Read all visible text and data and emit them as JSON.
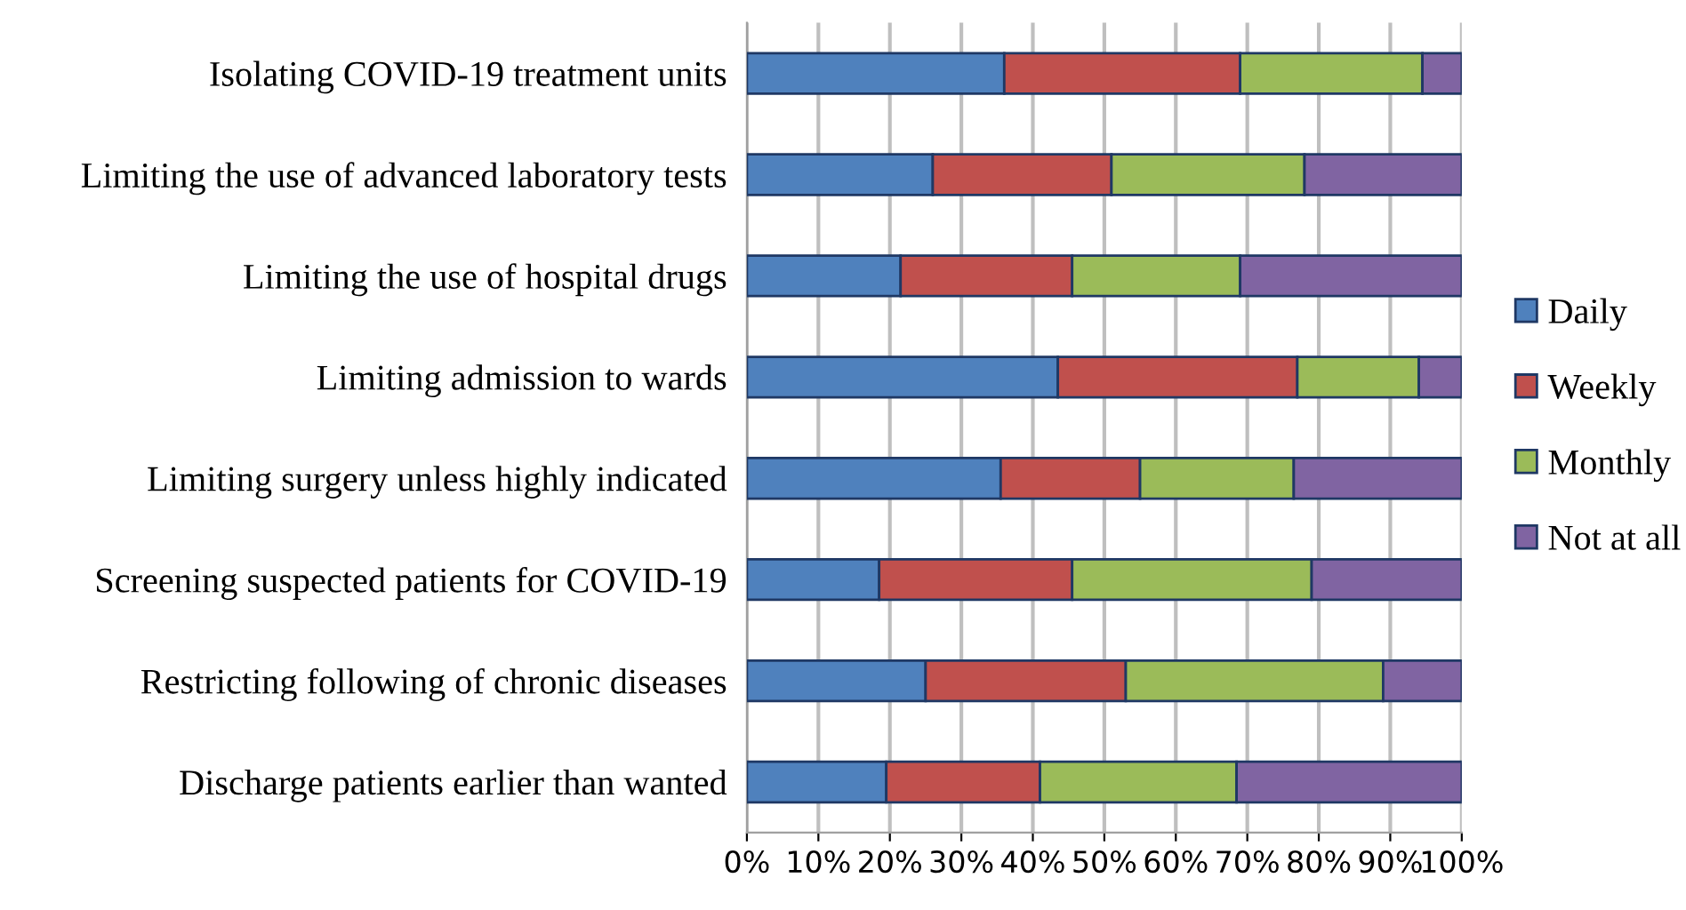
{
  "chart_data": {
    "type": "bar",
    "orientation": "horizontal",
    "stacked": true,
    "categories": [
      "Isolating COVID-19 treatment units",
      "Limiting the use of advanced laboratory tests",
      "Limiting the use of hospital drugs",
      "Limiting admission to wards",
      "Limiting surgery unless highly indicated",
      "Screening suspected patients for COVID-19",
      "Restricting following of chronic diseases",
      "Discharge patients earlier than wanted"
    ],
    "series": [
      {
        "name": "Daily",
        "color": "#4f81bd",
        "values": [
          36,
          26,
          21.5,
          43.5,
          35.5,
          18.5,
          25,
          19.5
        ]
      },
      {
        "name": "Weekly",
        "color": "#c0504d",
        "values": [
          33,
          25,
          24,
          33.5,
          19.5,
          27,
          28,
          21.5
        ]
      },
      {
        "name": "Monthly",
        "color": "#9bbb59",
        "values": [
          25.5,
          27,
          23.5,
          17,
          21.5,
          33.5,
          36,
          27.5
        ]
      },
      {
        "name": "Not at all",
        "color": "#8064a2",
        "values": [
          5.5,
          22,
          31,
          6,
          23.5,
          21,
          11,
          31.5
        ]
      }
    ],
    "xlim": [
      0,
      100
    ],
    "xticks": [
      {
        "value": 0,
        "label": "0%"
      },
      {
        "value": 10,
        "label": "10%"
      },
      {
        "value": 20,
        "label": "20%"
      },
      {
        "value": 30,
        "label": "30%"
      },
      {
        "value": 40,
        "label": "40%"
      },
      {
        "value": 50,
        "label": "50%"
      },
      {
        "value": 60,
        "label": "60%"
      },
      {
        "value": 70,
        "label": "70%"
      },
      {
        "value": 80,
        "label": "80%"
      },
      {
        "value": 90,
        "label": "90%"
      },
      {
        "value": 100,
        "label": "100%"
      }
    ],
    "grid": "x",
    "legend": "right"
  }
}
